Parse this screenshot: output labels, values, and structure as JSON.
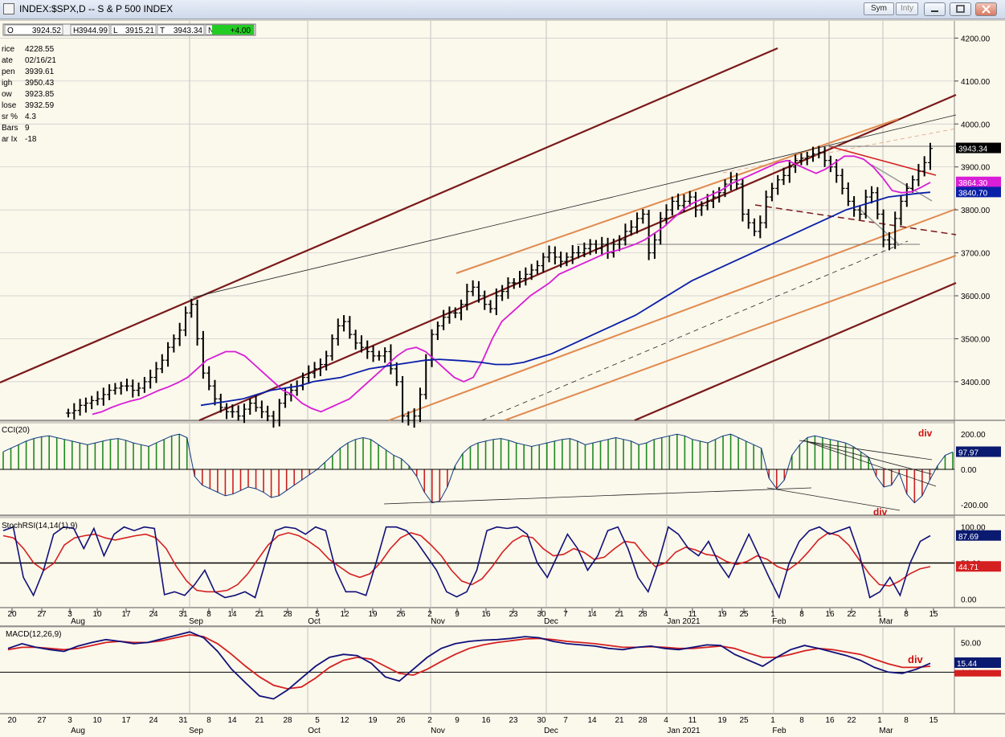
{
  "window": {
    "title": "INDEX:$SPX,D -- S & P 500 INDEX",
    "sym_label": "Sym",
    "inty_label": "Inty"
  },
  "ohlc_strip": [
    {
      "key": "O",
      "value": "3924.52"
    },
    {
      "key": "H",
      "value": "3944.99"
    },
    {
      "key": "L",
      "value": "3915.21"
    },
    {
      "key": "T",
      "value": "3943.34"
    },
    {
      "key": "N",
      "value": "+4.00"
    }
  ],
  "data_window": [
    {
      "label": "rice",
      "value": "4228.55"
    },
    {
      "label": "ate",
      "value": "02/16/21"
    },
    {
      "label": "pen",
      "value": "3939.61"
    },
    {
      "label": "igh",
      "value": "3950.43"
    },
    {
      "label": "ow",
      "value": "3923.85"
    },
    {
      "label": "lose",
      "value": "3932.59"
    },
    {
      "label": "sr %",
      "value": "4.3"
    },
    {
      "label": "Bars",
      "value": "9"
    },
    {
      "label": "ar Ix",
      "value": "-18"
    }
  ],
  "colors": {
    "background": "#fbf8ec",
    "bars": "#000000",
    "ma_fast": "#d81ed6",
    "ma_slow": "#0a1fa8",
    "channel_dark": "#7a1a1a",
    "channel_orange": "#e08a4e",
    "cci_pos": "#1d8a1d",
    "cci_neg": "#cc1f1f",
    "signal_red": "#d42020",
    "macd_blue": "#10107a",
    "div_text": "#cc1111"
  },
  "x_axis": {
    "dates": [
      "20",
      "27",
      "3",
      "10",
      "17",
      "24",
      "31",
      "8",
      "14",
      "21",
      "28",
      "5",
      "12",
      "19",
      "26",
      "2",
      "9",
      "16",
      "23",
      "30",
      "7",
      "14",
      "21",
      "28",
      "4",
      "11",
      "19",
      "25",
      "1",
      "8",
      "16",
      "22",
      "1",
      "8",
      "15"
    ],
    "months": [
      "Aug",
      "Sep",
      "Oct",
      "Nov",
      "Dec",
      "Jan 2021",
      "Feb",
      "Mar"
    ]
  },
  "chart_data": [
    {
      "type": "ohlc",
      "title": "INDEX:$SPX,D -- S & P 500 INDEX",
      "ylim": [
        3310,
        4240
      ],
      "y_ticks": [
        "4200.00",
        "4100.00",
        "4000.00",
        "3900.00",
        "3800.00",
        "3700.00",
        "3600.00",
        "3500.00",
        "3400.00"
      ],
      "price_labels": [
        {
          "text": "3943.34",
          "value": 3943.34,
          "color": "#000000"
        },
        {
          "text": "3864.30",
          "value": 3864.3,
          "color": "#d81ed6"
        },
        {
          "text": "3840.70",
          "value": 3840.7,
          "color": "#0a1fa8"
        }
      ],
      "close_series": [
        3327,
        3333,
        3345,
        3350,
        3356,
        3360,
        3370,
        3380,
        3385,
        3390,
        3390,
        3380,
        3385,
        3400,
        3410,
        3430,
        3450,
        3480,
        3500,
        3520,
        3560,
        3580,
        3500,
        3420,
        3390,
        3360,
        3340,
        3330,
        3330,
        3320,
        3336,
        3350,
        3340,
        3330,
        3320,
        3310,
        3350,
        3370,
        3380,
        3390,
        3410,
        3420,
        3430,
        3440,
        3460,
        3500,
        3530,
        3540,
        3510,
        3490,
        3480,
        3470,
        3460,
        3460,
        3470,
        3430,
        3400,
        3320,
        3310,
        3320,
        3370,
        3450,
        3510,
        3530,
        3550,
        3560,
        3560,
        3580,
        3610,
        3620,
        3600,
        3580,
        3570,
        3600,
        3610,
        3630,
        3630,
        3640,
        3650,
        3660,
        3670,
        3690,
        3700,
        3690,
        3680,
        3690,
        3700,
        3700,
        3710,
        3720,
        3710,
        3720,
        3700,
        3720,
        3730,
        3750,
        3760,
        3780,
        3790,
        3700,
        3730,
        3780,
        3800,
        3820,
        3810,
        3820,
        3830,
        3800,
        3810,
        3820,
        3830,
        3840,
        3860,
        3870,
        3860,
        3790,
        3770,
        3750,
        3770,
        3830,
        3850,
        3870,
        3880,
        3900,
        3915,
        3920,
        3925,
        3930,
        3934,
        3915,
        3900,
        3880,
        3850,
        3820,
        3800,
        3790,
        3830,
        3840,
        3790,
        3730,
        3720,
        3780,
        3820,
        3850,
        3870,
        3890,
        3910,
        3943
      ],
      "ma_fast_series": [
        3324,
        3330,
        3340,
        3348,
        3355,
        3360,
        3370,
        3380,
        3388,
        3398,
        3410,
        3430,
        3450,
        3460,
        3470,
        3470,
        3460,
        3440,
        3420,
        3400,
        3380,
        3370,
        3350,
        3338,
        3330,
        3340,
        3350,
        3360,
        3380,
        3400,
        3420,
        3440,
        3460,
        3475,
        3480,
        3470,
        3450,
        3430,
        3410,
        3400,
        3410,
        3450,
        3500,
        3540,
        3560,
        3580,
        3600,
        3615,
        3630,
        3650,
        3660,
        3670,
        3680,
        3690,
        3700,
        3705,
        3712,
        3720,
        3730,
        3745,
        3760,
        3780,
        3800,
        3815,
        3825,
        3835,
        3845,
        3860,
        3870,
        3880,
        3890,
        3900,
        3910,
        3915,
        3905,
        3895,
        3885,
        3895,
        3910,
        3925,
        3925,
        3918,
        3900,
        3875,
        3845,
        3840,
        3842,
        3852,
        3864
      ],
      "ma_slow_series": [
        3345,
        3350,
        3355,
        3360,
        3370,
        3380,
        3385,
        3390,
        3400,
        3405,
        3410,
        3420,
        3430,
        3435,
        3440,
        3445,
        3450,
        3452,
        3450,
        3448,
        3445,
        3440,
        3440,
        3445,
        3455,
        3465,
        3480,
        3495,
        3510,
        3525,
        3540,
        3555,
        3575,
        3595,
        3615,
        3635,
        3650,
        3665,
        3680,
        3695,
        3710,
        3725,
        3740,
        3755,
        3770,
        3785,
        3800,
        3810,
        3820,
        3830,
        3834,
        3838,
        3841
      ],
      "annotations": []
    },
    {
      "type": "bar",
      "title": "CCI(20)",
      "ylim": [
        -260,
        260
      ],
      "y_ticks": [
        "200.00",
        "0.00",
        "-200.00"
      ],
      "last_value": "97.97",
      "values": [
        100,
        120,
        140,
        160,
        175,
        185,
        190,
        180,
        170,
        160,
        150,
        140,
        150,
        160,
        170,
        175,
        165,
        150,
        140,
        130,
        150,
        170,
        190,
        200,
        180,
        -40,
        -90,
        -110,
        -130,
        -150,
        -140,
        -120,
        -100,
        -110,
        -130,
        -160,
        -150,
        -120,
        -90,
        -60,
        -30,
        0,
        40,
        80,
        120,
        150,
        170,
        180,
        170,
        140,
        110,
        80,
        60,
        20,
        -40,
        -130,
        -190,
        -180,
        -100,
        20,
        90,
        130,
        150,
        160,
        170,
        175,
        165,
        150,
        140,
        130,
        140,
        150,
        160,
        170,
        175,
        160,
        140,
        150,
        160,
        170,
        180,
        170,
        160,
        140,
        150,
        170,
        180,
        190,
        200,
        190,
        170,
        160,
        150,
        170,
        190,
        200,
        180,
        160,
        140,
        120,
        -50,
        -110,
        -60,
        80,
        140,
        180,
        190,
        180,
        170,
        160,
        150,
        130,
        100,
        70,
        -40,
        -100,
        -90,
        -20,
        -140,
        -190,
        -150,
        -60,
        20,
        80,
        98
      ],
      "annotations": [
        "div",
        "div"
      ]
    },
    {
      "type": "line",
      "title": "StochRSI(14,14(1),9)",
      "ylim": [
        -0.12,
        1.12
      ],
      "y_ticks": [
        "100.00",
        "50.00",
        "0.00"
      ],
      "last_values": [
        "87.69",
        "44.71"
      ],
      "series": [
        {
          "name": "",
          "values": [
            0.95,
            1.0,
            0.3,
            0.05,
            0.4,
            0.9,
            1.0,
            0.98,
            0.7,
            0.98,
            0.6,
            0.9,
            1.0,
            0.95,
            1.0,
            0.98,
            0.06,
            0.1,
            0.05,
            0.2,
            0.4,
            0.1,
            0.02,
            0.05,
            0.1,
            0.02,
            0.5,
            0.95,
            1.0,
            0.98,
            0.9,
            1.0,
            0.95,
            0.4,
            0.1,
            0.1,
            0.05,
            0.5,
            1.0,
            1.0,
            0.95,
            0.8,
            0.6,
            0.4,
            0.1,
            0.03,
            0.1,
            0.4,
            0.95,
            1.0,
            0.98,
            1.0,
            0.9,
            0.5,
            0.3,
            0.6,
            0.9,
            0.7,
            0.4,
            0.6,
            0.95,
            1.0,
            0.7,
            0.3,
            0.1,
            0.5,
            1.0,
            0.9,
            0.7,
            0.6,
            0.8,
            0.5,
            0.3,
            0.6,
            0.9,
            0.6,
            0.3,
            0.02,
            0.5,
            0.8,
            0.95,
            1.0,
            0.9,
            0.95,
            1.0,
            0.6,
            0.02,
            0.1,
            0.3,
            0.05,
            0.5,
            0.8,
            0.88
          ]
        },
        {
          "name": "",
          "values": [
            0.88,
            0.85,
            0.7,
            0.5,
            0.4,
            0.5,
            0.75,
            0.85,
            0.88,
            0.9,
            0.85,
            0.82,
            0.85,
            0.88,
            0.9,
            0.85,
            0.7,
            0.45,
            0.25,
            0.12,
            0.1,
            0.1,
            0.12,
            0.2,
            0.35,
            0.55,
            0.75,
            0.88,
            0.92,
            0.88,
            0.8,
            0.7,
            0.55,
            0.45,
            0.35,
            0.3,
            0.35,
            0.5,
            0.7,
            0.85,
            0.92,
            0.88,
            0.75,
            0.6,
            0.4,
            0.25,
            0.2,
            0.28,
            0.45,
            0.65,
            0.8,
            0.88,
            0.85,
            0.7,
            0.6,
            0.62,
            0.7,
            0.65,
            0.55,
            0.58,
            0.7,
            0.8,
            0.78,
            0.6,
            0.45,
            0.5,
            0.65,
            0.72,
            0.68,
            0.62,
            0.6,
            0.52,
            0.48,
            0.52,
            0.6,
            0.55,
            0.45,
            0.4,
            0.5,
            0.65,
            0.82,
            0.92,
            0.88,
            0.75,
            0.55,
            0.35,
            0.2,
            0.18,
            0.25,
            0.35,
            0.42,
            0.45
          ]
        }
      ]
    },
    {
      "type": "line",
      "title": "MACD(12,26,9)",
      "ylim": [
        -70,
        75
      ],
      "y_ticks": [
        "50.00",
        "0.00"
      ],
      "last_values": [
        "15.44",
        "10.35"
      ],
      "series": [
        {
          "name": "",
          "values": [
            40,
            48,
            42,
            38,
            35,
            44,
            50,
            55,
            52,
            48,
            50,
            56,
            62,
            68,
            58,
            35,
            5,
            -18,
            -40,
            -45,
            -30,
            -10,
            10,
            25,
            30,
            28,
            15,
            -8,
            -15,
            5,
            25,
            40,
            48,
            52,
            54,
            55,
            57,
            60,
            58,
            52,
            48,
            46,
            44,
            40,
            38,
            42,
            44,
            40,
            38,
            42,
            46,
            45,
            30,
            20,
            10,
            25,
            38,
            45,
            40,
            34,
            28,
            20,
            8,
            0,
            -2,
            5,
            15
          ]
        },
        {
          "name": "",
          "values": [
            38,
            42,
            42,
            40,
            38,
            40,
            45,
            50,
            52,
            50,
            50,
            53,
            58,
            63,
            60,
            48,
            30,
            10,
            -8,
            -22,
            -28,
            -25,
            -10,
            8,
            20,
            25,
            22,
            10,
            -2,
            -5,
            5,
            18,
            30,
            40,
            46,
            50,
            53,
            56,
            57,
            55,
            52,
            50,
            48,
            45,
            42,
            42,
            43,
            42,
            40,
            40,
            42,
            44,
            40,
            32,
            25,
            25,
            30,
            36,
            40,
            38,
            34,
            30,
            22,
            14,
            8,
            8,
            10
          ]
        }
      ],
      "annotations": [
        "div"
      ]
    }
  ]
}
